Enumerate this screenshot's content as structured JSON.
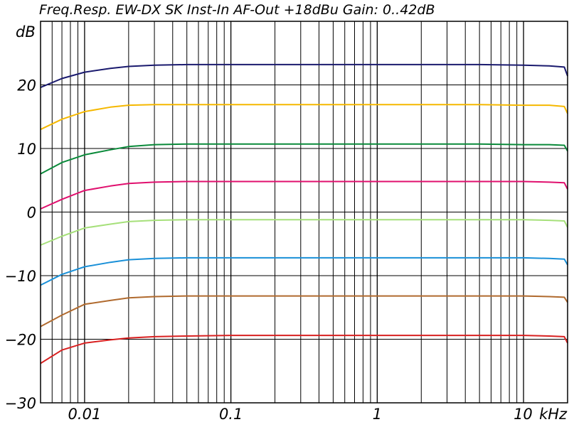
{
  "chart_data": {
    "type": "line",
    "title": "Freq.Resp. EW-DX SK Inst-In AF-Out +18dBu Gain: 0..42dB",
    "ylabel": "dB",
    "x_scale": "log",
    "x_unit_label": "kHz",
    "xlim": [
      0.005,
      20
    ],
    "ylim": [
      -30,
      30
    ],
    "grid": true,
    "y_ticks": [
      {
        "value": 20,
        "label": "20"
      },
      {
        "value": 10,
        "label": "10"
      },
      {
        "value": 0,
        "label": "0"
      },
      {
        "value": -10,
        "label": "-10"
      },
      {
        "value": -20,
        "label": "-20"
      },
      {
        "value": -30,
        "label": "-30"
      }
    ],
    "x_ticks": [
      {
        "value": 0.01,
        "label": "0.01"
      },
      {
        "value": 0.1,
        "label": "0.1"
      },
      {
        "value": 1,
        "label": "1"
      },
      {
        "value": 10,
        "label": "10"
      }
    ],
    "x": [
      0.005,
      0.007,
      0.01,
      0.015,
      0.02,
      0.03,
      0.05,
      0.1,
      0.2,
      0.5,
      1,
      2,
      5,
      10,
      15,
      19,
      20
    ],
    "series": [
      {
        "color": "#1a1a6e",
        "values": [
          19.6,
          21.0,
          22.0,
          22.6,
          22.9,
          23.1,
          23.2,
          23.2,
          23.2,
          23.2,
          23.2,
          23.2,
          23.2,
          23.1,
          23.0,
          22.8,
          21.4
        ]
      },
      {
        "color": "#f5b800",
        "values": [
          13.0,
          14.6,
          15.8,
          16.5,
          16.8,
          16.9,
          16.9,
          16.9,
          16.9,
          16.9,
          16.9,
          16.9,
          16.9,
          16.8,
          16.8,
          16.6,
          15.5
        ]
      },
      {
        "color": "#0a8a3a",
        "values": [
          6.0,
          7.8,
          9.0,
          9.8,
          10.3,
          10.6,
          10.7,
          10.7,
          10.7,
          10.7,
          10.7,
          10.7,
          10.7,
          10.6,
          10.6,
          10.5,
          9.6
        ]
      },
      {
        "color": "#e0106e",
        "values": [
          0.5,
          2.0,
          3.4,
          4.1,
          4.5,
          4.7,
          4.8,
          4.8,
          4.8,
          4.8,
          4.8,
          4.8,
          4.8,
          4.8,
          4.7,
          4.6,
          3.6
        ]
      },
      {
        "color": "#a6e07a",
        "values": [
          -5.2,
          -3.8,
          -2.5,
          -1.9,
          -1.5,
          -1.3,
          -1.2,
          -1.2,
          -1.2,
          -1.2,
          -1.2,
          -1.2,
          -1.2,
          -1.2,
          -1.3,
          -1.4,
          -2.4
        ]
      },
      {
        "color": "#1a90d8",
        "values": [
          -11.5,
          -9.8,
          -8.6,
          -7.9,
          -7.5,
          -7.3,
          -7.2,
          -7.2,
          -7.2,
          -7.2,
          -7.2,
          -7.2,
          -7.2,
          -7.2,
          -7.3,
          -7.4,
          -8.3
        ]
      },
      {
        "color": "#b06a2e",
        "values": [
          -18.0,
          -16.2,
          -14.5,
          -13.9,
          -13.5,
          -13.3,
          -13.2,
          -13.2,
          -13.2,
          -13.2,
          -13.2,
          -13.2,
          -13.2,
          -13.2,
          -13.3,
          -13.4,
          -14.2
        ]
      },
      {
        "color": "#d82020",
        "values": [
          -23.8,
          -21.7,
          -20.6,
          -20.1,
          -19.8,
          -19.6,
          -19.5,
          -19.4,
          -19.4,
          -19.4,
          -19.4,
          -19.4,
          -19.4,
          -19.4,
          -19.5,
          -19.6,
          -20.6
        ]
      }
    ]
  }
}
